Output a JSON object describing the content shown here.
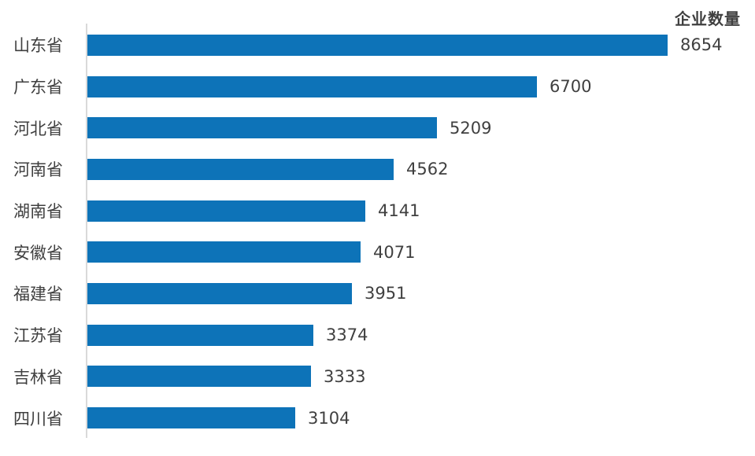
{
  "title": "企业数量",
  "colors": {
    "bar": "#0d73b8",
    "axis_line": "#d9d9d9",
    "category_label": "#3f3f3f",
    "value_label": "#404040",
    "title_text": "#3f3f3f",
    "background": "#ffffff"
  },
  "chart_data": {
    "type": "bar",
    "orientation": "horizontal",
    "title": "企业数量",
    "xlabel": "",
    "ylabel": "",
    "categories": [
      "山东省",
      "广东省",
      "河北省",
      "河南省",
      "湖南省",
      "安徽省",
      "福建省",
      "江苏省",
      "吉林省",
      "四川省"
    ],
    "values": [
      8654,
      6700,
      5209,
      4562,
      4141,
      4071,
      3951,
      3374,
      3333,
      3104
    ],
    "value_labels_position": "outside-end",
    "grid": false,
    "legend": "none",
    "axis_ticks_visible": false,
    "xlim": [
      0,
      9000
    ]
  }
}
